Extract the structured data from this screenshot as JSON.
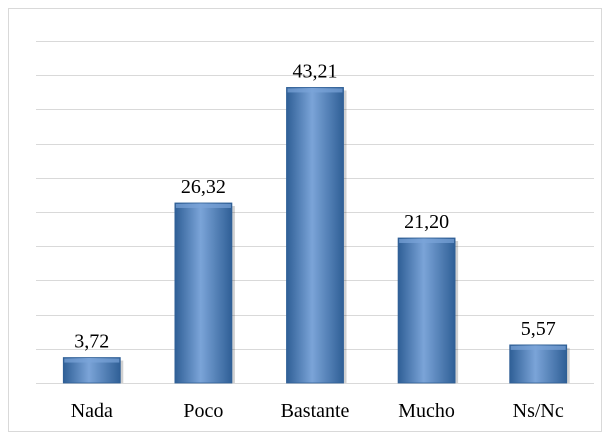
{
  "chart_data": {
    "type": "bar",
    "title": "",
    "xlabel": "",
    "ylabel": "",
    "categories": [
      "Nada",
      "Poco",
      "Bastante",
      "Mucho",
      "Ns/Nc"
    ],
    "values": [
      3.72,
      26.32,
      43.21,
      21.2,
      5.57
    ],
    "data_labels": [
      "3,72",
      "26,32",
      "43,21",
      "21,20",
      "5,57"
    ],
    "ylim": [
      0,
      50
    ],
    "grid_step": 5,
    "grid": true,
    "legend": "none",
    "bar_color": "#4f81bd",
    "bar_highlight": "#7ba4d8",
    "bar_shadow": "#2f5f96"
  }
}
